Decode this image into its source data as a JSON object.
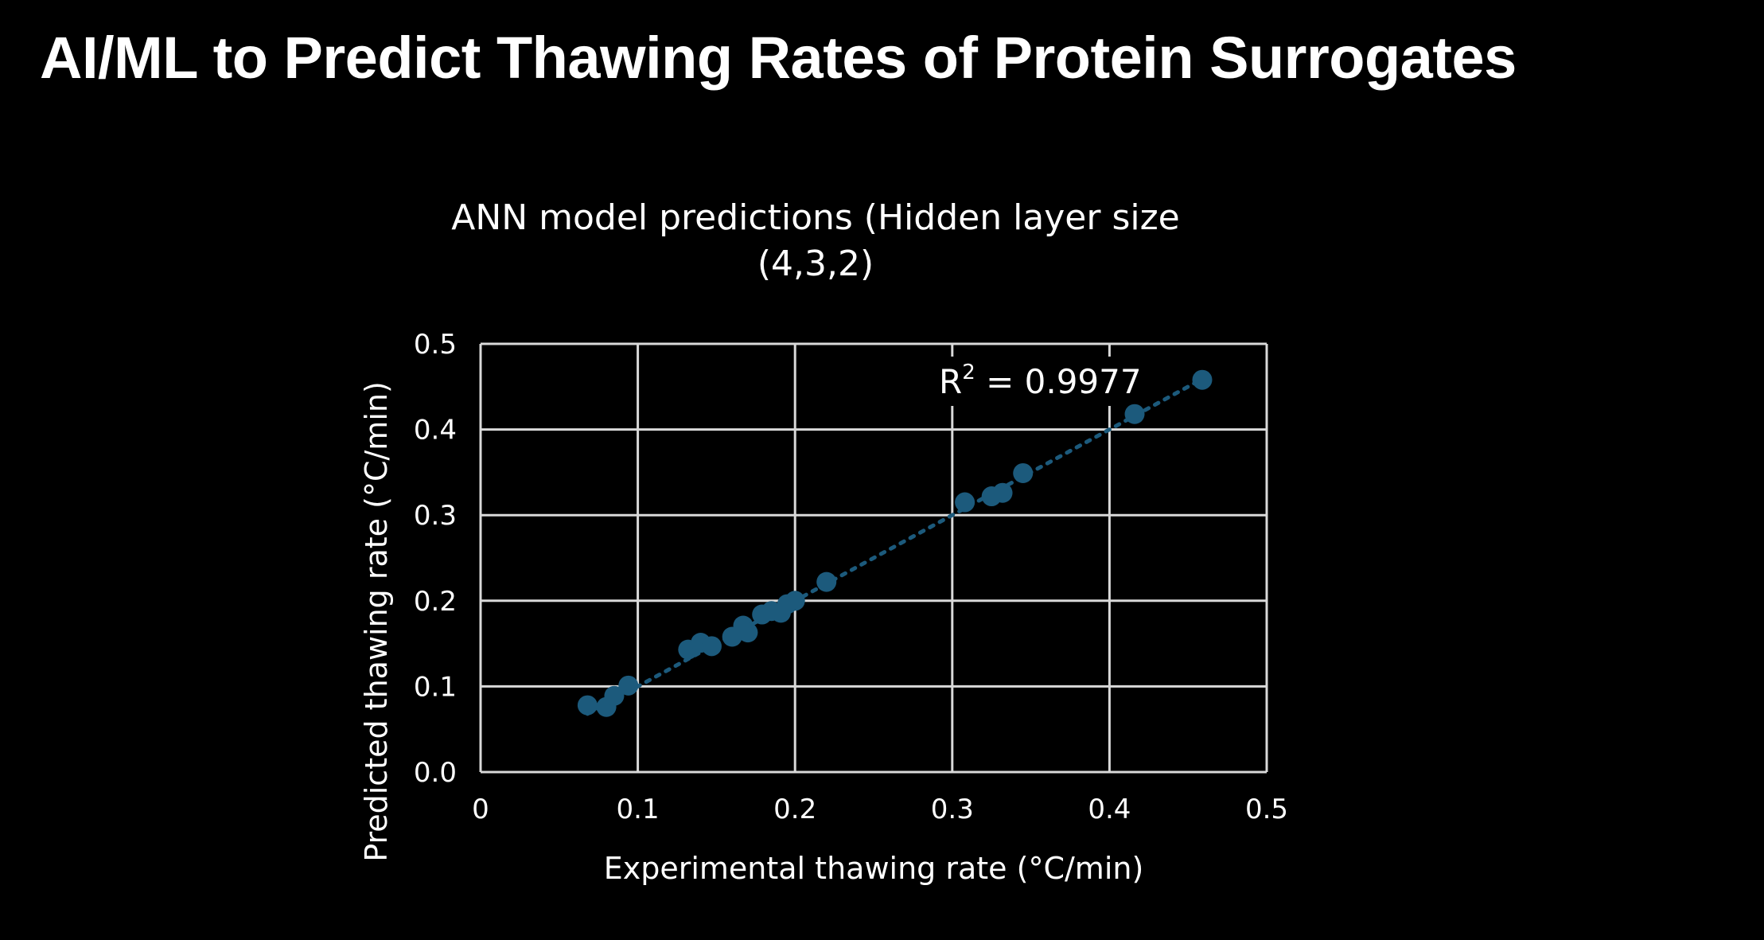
{
  "slide": {
    "title": "AI/ML to Predict Thawing Rates of Protein Surrogates",
    "background": "#000000"
  },
  "chart_data": {
    "type": "scatter",
    "title_lines": [
      "ANN model predictions (Hidden layer size",
      "(4,3,2)"
    ],
    "xlabel": "Experimental thawing rate (°C/min)",
    "ylabel": "Predicted thawing rate (°C/min)",
    "xlim": [
      0,
      0.5
    ],
    "ylim": [
      0,
      0.5
    ],
    "x_ticks": [
      "0",
      "0.1",
      "0.2",
      "0.3",
      "0.4",
      "0.5"
    ],
    "y_ticks": [
      "0.0",
      "0.1",
      "0.2",
      "0.3",
      "0.4",
      "0.5"
    ],
    "grid": true,
    "annotation": {
      "base": "R",
      "sup": "2",
      "rest": " = 0.9977"
    },
    "trendline": {
      "style": "dotted",
      "x_range": [
        0.068,
        0.46
      ],
      "slope": 1.0,
      "intercept": 0.0
    },
    "marker_color": "#1c5a7c",
    "points": [
      {
        "x": 0.068,
        "y": 0.078
      },
      {
        "x": 0.08,
        "y": 0.076
      },
      {
        "x": 0.085,
        "y": 0.089
      },
      {
        "x": 0.094,
        "y": 0.101
      },
      {
        "x": 0.132,
        "y": 0.143
      },
      {
        "x": 0.14,
        "y": 0.151
      },
      {
        "x": 0.147,
        "y": 0.147
      },
      {
        "x": 0.16,
        "y": 0.158
      },
      {
        "x": 0.167,
        "y": 0.171
      },
      {
        "x": 0.17,
        "y": 0.163
      },
      {
        "x": 0.179,
        "y": 0.184
      },
      {
        "x": 0.185,
        "y": 0.188
      },
      {
        "x": 0.191,
        "y": 0.186
      },
      {
        "x": 0.195,
        "y": 0.196
      },
      {
        "x": 0.2,
        "y": 0.2
      },
      {
        "x": 0.22,
        "y": 0.222
      },
      {
        "x": 0.308,
        "y": 0.315
      },
      {
        "x": 0.325,
        "y": 0.322
      },
      {
        "x": 0.332,
        "y": 0.326
      },
      {
        "x": 0.345,
        "y": 0.349
      },
      {
        "x": 0.416,
        "y": 0.418
      },
      {
        "x": 0.459,
        "y": 0.458
      }
    ]
  }
}
